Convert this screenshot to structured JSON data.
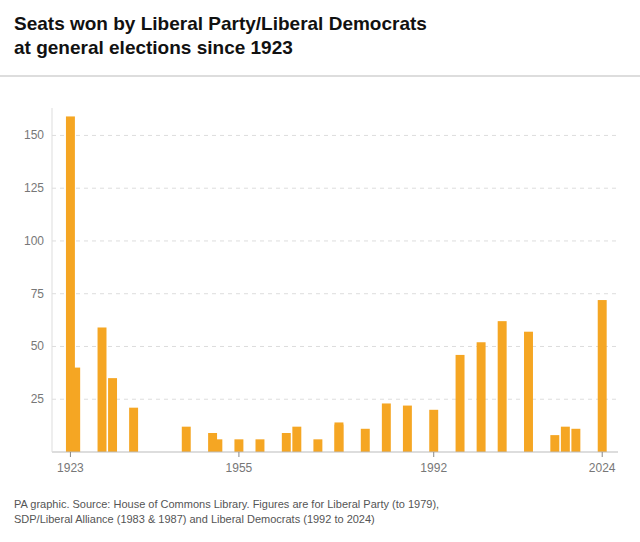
{
  "chart_data": {
    "type": "bar",
    "title": "Seats won by Liberal Party/Liberal Democrats\nat general elections since 1923",
    "x": [
      1923,
      1924,
      1929,
      1931,
      1935,
      1945,
      1950,
      1951,
      1955,
      1959,
      1964,
      1966,
      1970,
      1974,
      1974,
      1979,
      1983,
      1987,
      1992,
      1997,
      2001,
      2005,
      2010,
      2015,
      2017,
      2019,
      2024
    ],
    "values": [
      159,
      40,
      59,
      35,
      21,
      12,
      9,
      6,
      6,
      6,
      9,
      12,
      6,
      14,
      13,
      11,
      23,
      22,
      20,
      46,
      52,
      62,
      57,
      8,
      12,
      11,
      72
    ],
    "color": "#F5A623",
    "xlim": [
      1919.5,
      2027
    ],
    "xticks": [
      1923,
      1955,
      1992,
      2024
    ],
    "ylim": [
      0,
      163
    ],
    "yticks": [
      25,
      50,
      75,
      100,
      125,
      150
    ],
    "grid": true,
    "annotations": [
      "PA graphic. Source: House of Commons Library. Figures are for Liberal Party (to 1979),\nSDP/Liberal Alliance (1983 & 1987) and Liberal Democrats (1992 to 2024)"
    ]
  }
}
